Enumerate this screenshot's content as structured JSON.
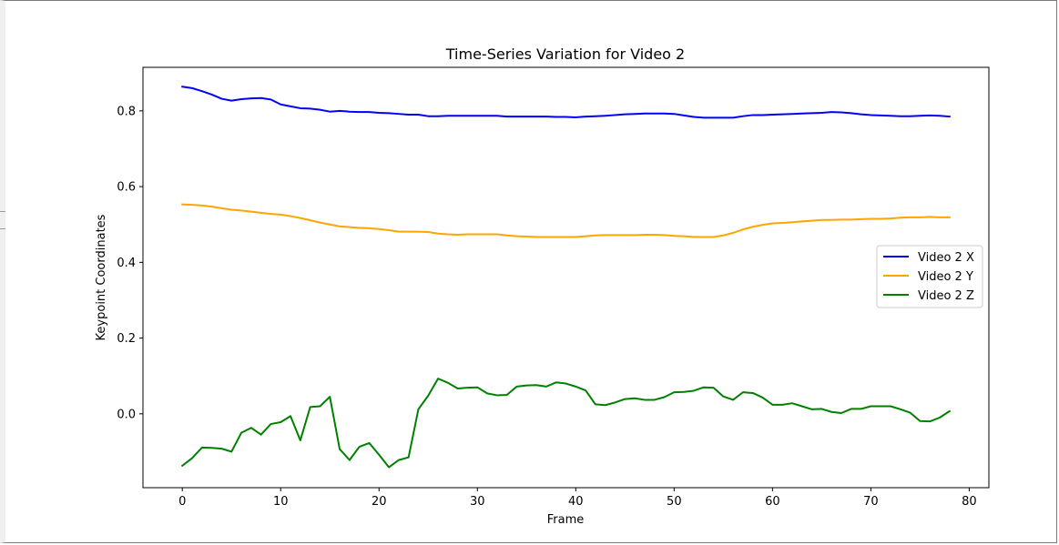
{
  "chart_data": {
    "type": "line",
    "title": "Time-Series Variation for Video 2",
    "xlabel": "Frame",
    "ylabel": "Keypoint Coordinates",
    "xlim": [
      -4.0,
      82.0
    ],
    "ylim": [
      -0.195,
      0.915
    ],
    "xticks": [
      0,
      10,
      20,
      30,
      40,
      50,
      60,
      70,
      80
    ],
    "xtick_labels": [
      "0",
      "10",
      "20",
      "30",
      "40",
      "50",
      "60",
      "70",
      "80"
    ],
    "yticks": [
      0.0,
      0.2,
      0.4,
      0.6,
      0.8
    ],
    "ytick_labels": [
      "0.0",
      "0.2",
      "0.4",
      "0.6",
      "0.8"
    ],
    "grid": false,
    "legend_position": "center-right",
    "x": [
      0,
      1,
      2,
      3,
      4,
      5,
      6,
      7,
      8,
      9,
      10,
      11,
      12,
      13,
      14,
      15,
      16,
      17,
      18,
      19,
      20,
      21,
      22,
      23,
      24,
      25,
      26,
      27,
      28,
      29,
      30,
      31,
      32,
      33,
      34,
      35,
      36,
      37,
      38,
      39,
      40,
      41,
      42,
      43,
      44,
      45,
      46,
      47,
      48,
      49,
      50,
      51,
      52,
      53,
      54,
      55,
      56,
      57,
      58,
      59,
      60,
      61,
      62,
      63,
      64,
      65,
      66,
      67,
      68,
      69,
      70,
      71,
      72,
      73,
      74,
      75,
      76,
      77,
      78
    ],
    "series": [
      {
        "name": "Video 2 X",
        "color": "#0000ff",
        "values": [
          0.864,
          0.86,
          0.852,
          0.843,
          0.832,
          0.827,
          0.831,
          0.833,
          0.834,
          0.83,
          0.817,
          0.812,
          0.807,
          0.806,
          0.803,
          0.798,
          0.8,
          0.798,
          0.797,
          0.797,
          0.795,
          0.794,
          0.792,
          0.79,
          0.79,
          0.786,
          0.786,
          0.787,
          0.787,
          0.787,
          0.787,
          0.787,
          0.787,
          0.785,
          0.785,
          0.785,
          0.785,
          0.785,
          0.784,
          0.784,
          0.783,
          0.785,
          0.786,
          0.787,
          0.789,
          0.791,
          0.792,
          0.793,
          0.793,
          0.793,
          0.792,
          0.788,
          0.784,
          0.782,
          0.782,
          0.782,
          0.782,
          0.786,
          0.789,
          0.789,
          0.79,
          0.791,
          0.792,
          0.793,
          0.794,
          0.795,
          0.797,
          0.796,
          0.794,
          0.791,
          0.789,
          0.788,
          0.787,
          0.786,
          0.786,
          0.787,
          0.788,
          0.787,
          0.785
        ]
      },
      {
        "name": "Video 2 Y",
        "color": "#ffa500",
        "values": [
          0.553,
          0.552,
          0.55,
          0.547,
          0.543,
          0.539,
          0.537,
          0.534,
          0.531,
          0.528,
          0.526,
          0.522,
          0.517,
          0.511,
          0.505,
          0.5,
          0.495,
          0.493,
          0.491,
          0.49,
          0.488,
          0.485,
          0.481,
          0.481,
          0.481,
          0.48,
          0.476,
          0.474,
          0.473,
          0.474,
          0.474,
          0.474,
          0.474,
          0.471,
          0.469,
          0.468,
          0.467,
          0.467,
          0.467,
          0.467,
          0.467,
          0.469,
          0.471,
          0.472,
          0.472,
          0.472,
          0.472,
          0.473,
          0.473,
          0.472,
          0.47,
          0.469,
          0.467,
          0.467,
          0.467,
          0.471,
          0.478,
          0.487,
          0.494,
          0.499,
          0.503,
          0.504,
          0.506,
          0.508,
          0.51,
          0.512,
          0.512,
          0.513,
          0.513,
          0.514,
          0.515,
          0.515,
          0.516,
          0.518,
          0.519,
          0.519,
          0.52,
          0.519,
          0.519
        ]
      },
      {
        "name": "Video 2 Z",
        "color": "#008000",
        "values": [
          -0.137,
          -0.117,
          -0.089,
          -0.09,
          -0.092,
          -0.1,
          -0.05,
          -0.037,
          -0.055,
          -0.027,
          -0.022,
          -0.006,
          -0.07,
          0.018,
          0.02,
          0.045,
          -0.093,
          -0.122,
          -0.087,
          -0.077,
          -0.108,
          -0.141,
          -0.122,
          -0.115,
          0.012,
          0.048,
          0.093,
          0.082,
          0.067,
          0.069,
          0.07,
          0.054,
          0.049,
          0.05,
          0.072,
          0.075,
          0.076,
          0.072,
          0.083,
          0.08,
          0.072,
          0.062,
          0.025,
          0.023,
          0.03,
          0.039,
          0.041,
          0.037,
          0.037,
          0.044,
          0.057,
          0.058,
          0.061,
          0.07,
          0.069,
          0.046,
          0.037,
          0.057,
          0.055,
          0.043,
          0.024,
          0.024,
          0.028,
          0.02,
          0.012,
          0.013,
          0.005,
          0.002,
          0.013,
          0.013,
          0.02,
          0.02,
          0.02,
          0.012,
          0.003,
          -0.019,
          -0.02,
          -0.01,
          0.007
        ]
      }
    ]
  }
}
